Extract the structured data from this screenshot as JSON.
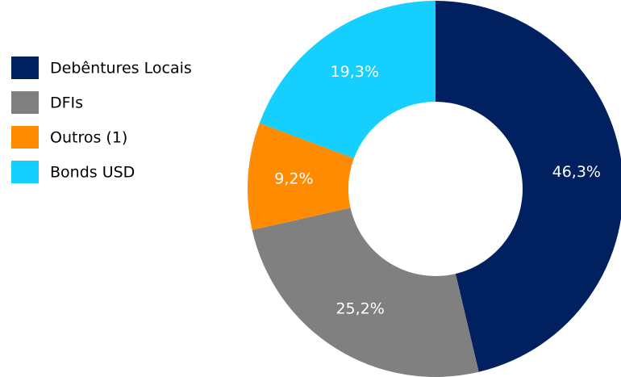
{
  "chart_data": {
    "type": "donut",
    "categories": [
      "Debêntures Locais",
      "DFIs",
      "Outros (1)",
      "Bonds USD"
    ],
    "values": [
      46.3,
      25.2,
      9.2,
      19.3
    ],
    "value_labels": [
      "46,3%",
      "25,2%",
      "9,2%",
      "19,3%"
    ],
    "colors": [
      "#002060",
      "#808080",
      "#ff8c00",
      "#15cfff"
    ],
    "legend": "left"
  }
}
